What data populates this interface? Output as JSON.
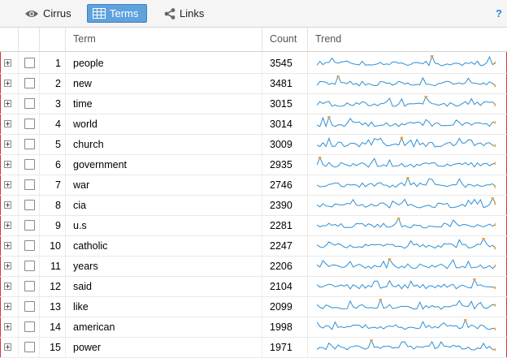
{
  "toolbar": {
    "tabs": [
      {
        "label": "Cirrus",
        "icon": "eye-icon",
        "active": false
      },
      {
        "label": "Terms",
        "icon": "table-icon",
        "active": true
      },
      {
        "label": "Links",
        "icon": "share-icon",
        "active": false
      }
    ],
    "help": "?"
  },
  "grid": {
    "columns": {
      "term": "Term",
      "count": "Count",
      "trend": "Trend"
    },
    "rows": [
      {
        "index": "1",
        "term": "people",
        "count": "3545"
      },
      {
        "index": "2",
        "term": "new",
        "count": "3481"
      },
      {
        "index": "3",
        "term": "time",
        "count": "3015"
      },
      {
        "index": "4",
        "term": "world",
        "count": "3014"
      },
      {
        "index": "5",
        "term": "church",
        "count": "3009"
      },
      {
        "index": "6",
        "term": "government",
        "count": "2935"
      },
      {
        "index": "7",
        "term": "war",
        "count": "2746"
      },
      {
        "index": "8",
        "term": "cia",
        "count": "2390"
      },
      {
        "index": "9",
        "term": "u.s",
        "count": "2281"
      },
      {
        "index": "10",
        "term": "catholic",
        "count": "2247"
      },
      {
        "index": "11",
        "term": "years",
        "count": "2206"
      },
      {
        "index": "12",
        "term": "said",
        "count": "2104"
      },
      {
        "index": "13",
        "term": "like",
        "count": "2099"
      },
      {
        "index": "14",
        "term": "american",
        "count": "1998"
      },
      {
        "index": "15",
        "term": "power",
        "count": "1971"
      }
    ]
  },
  "colors": {
    "accent": "#5fa2dd",
    "spark_line": "#2d8fd5",
    "spark_marker": "#f5a030"
  }
}
